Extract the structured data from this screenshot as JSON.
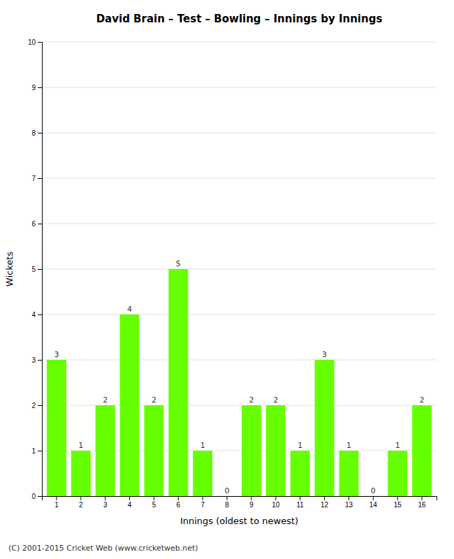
{
  "chart_data": {
    "type": "bar",
    "title": "David Brain – Test – Bowling – Innings by Innings",
    "x_label": "Innings (oldest to newest)",
    "y_label": "Wickets",
    "categories": [
      "1",
      "2",
      "3",
      "4",
      "5",
      "6",
      "7",
      "8",
      "9",
      "10",
      "11",
      "12",
      "13",
      "14",
      "15",
      "16"
    ],
    "values": [
      3,
      1,
      2,
      4,
      2,
      5,
      1,
      0,
      2,
      2,
      1,
      3,
      1,
      0,
      1,
      2
    ],
    "color": "#66ff00",
    "ylim": [
      0,
      10
    ],
    "yticks": [
      0,
      1,
      2,
      3,
      4,
      5,
      6,
      7,
      8,
      9,
      10
    ],
    "grid": true,
    "data_labels": true,
    "annotations": [
      "(C) 2001-2015 Cricket Web (www.cricketweb.net)"
    ]
  }
}
